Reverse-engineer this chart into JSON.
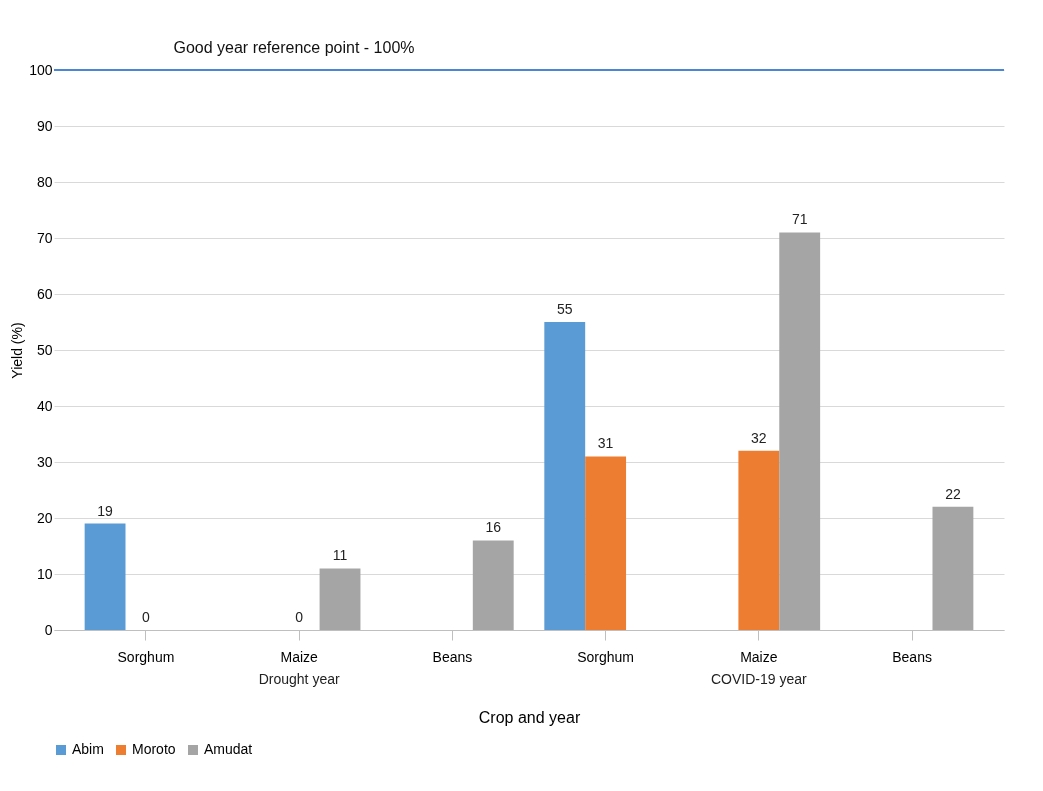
{
  "chart_data": {
    "type": "bar",
    "xlabel": "Crop and year",
    "ylabel": "Yield (%)",
    "categories": [
      "Sorghum",
      "Maize",
      "Beans",
      "Sorghum",
      "Maize",
      "Beans"
    ],
    "series": [
      {
        "name": "Abim",
        "color": "#5b9bd5",
        "values": [
          19,
          null,
          null,
          55,
          null,
          null
        ]
      },
      {
        "name": "Moroto",
        "color": "#ed7d31",
        "values": [
          0,
          0,
          null,
          31,
          32,
          null
        ]
      },
      {
        "name": "Amudat",
        "color": "#a5a5a5",
        "values": [
          null,
          11,
          16,
          null,
          71,
          22
        ]
      }
    ],
    "annotations": [
      "Drought year",
      "COVID-19 year"
    ],
    "ref_lines": [
      {
        "axis": "y",
        "value": 100,
        "label": "Good year reference point - 100%",
        "color": "#4a86d4"
      }
    ],
    "ylim": [
      0,
      100
    ],
    "yticks": [
      0,
      10,
      20,
      30,
      40,
      50,
      60,
      70,
      80,
      90,
      100
    ],
    "grid": "y",
    "legend": "bottom",
    "data_labels": true
  }
}
